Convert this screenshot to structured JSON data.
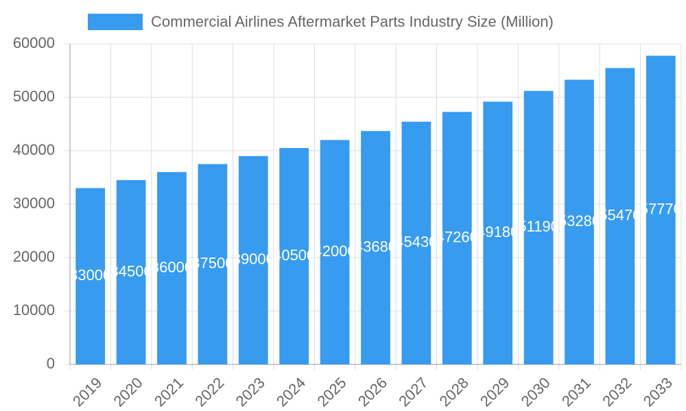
{
  "chart_data": {
    "type": "bar",
    "legend_label": "Commercial Airlines Aftermarket Parts Industry Size (Million)",
    "categories": [
      "2019",
      "2020",
      "2021",
      "2022",
      "2023",
      "2024",
      "2025",
      "2026",
      "2027",
      "2028",
      "2029",
      "2030",
      "2031",
      "2032",
      "2033"
    ],
    "values": [
      33000,
      34500,
      36000,
      37500,
      39000,
      40500,
      42000,
      43680,
      45430,
      47260,
      49180,
      51190,
      53280,
      55470,
      57770
    ],
    "color": "#379bf0",
    "ylim": [
      0,
      60000
    ],
    "yticks": [
      0,
      10000,
      20000,
      30000,
      40000,
      50000,
      60000
    ],
    "grid": true
  }
}
